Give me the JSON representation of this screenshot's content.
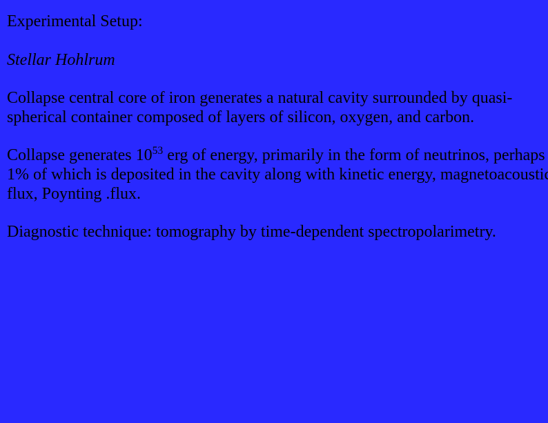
{
  "background_color": "#2929ff",
  "text_color": "#000000",
  "font_family": "Times New Roman, serif",
  "font_size_pt": 18,
  "heading": "Experimental Setup:",
  "subtitle": "Stellar Hohlrum",
  "para1": "Collapse central core of iron generates a natural cavity surrounded by quasi-spherical container composed of layers of silicon, oxygen, and carbon.",
  "para2_pre": "Collapse generates 10",
  "para2_exp": "53",
  "para2_post": " erg of energy, primarily in the form of neutrinos, perhaps 1% of which is deposited in the cavity along with kinetic energy, magnetoacoustic flux, Poynting .flux.",
  "para3": "Diagnostic technique: tomography by time-dependent spectropolarimetry."
}
